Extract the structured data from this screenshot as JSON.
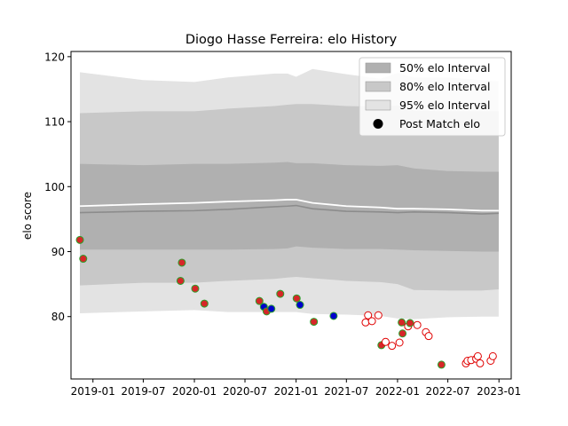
{
  "chart_data": {
    "type": "scatter",
    "title": "Diogo Hasse Ferreira: elo History",
    "xlabel": "",
    "ylabel": "elo score",
    "xlim": [
      "2018-10-14",
      "2023-02-14"
    ],
    "ylim": [
      70.4,
      120.8
    ],
    "x_ticks": [
      "2019-01",
      "2019-07",
      "2020-01",
      "2020-07",
      "2021-01",
      "2021-07",
      "2022-01",
      "2022-07",
      "2023-01"
    ],
    "y_ticks": [
      80,
      90,
      100,
      110,
      120
    ],
    "grid": false,
    "legend_position": "top-right",
    "legend": [
      "50% elo Interval",
      "80% elo Interval",
      "95% elo Interval",
      "Post Match elo"
    ],
    "colors": {
      "band_50": "#b0b0b0",
      "band_80": "#c8c8c8",
      "band_95": "#e3e3e3",
      "median_line": "#8c8c8c",
      "mean_line": "#ffffff",
      "win_fill": "#d62728",
      "loss_fill": "#0000cc",
      "future_edge": "#e00000",
      "played_edge": "#2ca02c"
    },
    "bands": {
      "x": [
        "2018-11-15",
        "2019-07-01",
        "2020-01-01",
        "2020-05-01",
        "2020-10-15",
        "2020-12-01",
        "2021-01-01",
        "2021-03-01",
        "2021-07-01",
        "2021-11-01",
        "2022-01-01",
        "2022-03-01",
        "2022-07-01",
        "2022-11-01",
        "2022-12-31"
      ],
      "p95_upper": [
        117.6,
        116.4,
        116.1,
        116.8,
        117.4,
        117.4,
        116.9,
        118.1,
        117.3,
        116.6,
        117.5,
        116.8,
        116.8,
        116.4,
        116.2
      ],
      "p80_upper": [
        111.3,
        111.6,
        111.6,
        112.0,
        112.4,
        112.6,
        112.7,
        112.7,
        112.4,
        112.3,
        112.5,
        111.7,
        111.6,
        111.6,
        111.6
      ],
      "p50_upper": [
        103.5,
        103.3,
        103.5,
        103.5,
        103.7,
        103.8,
        103.6,
        103.6,
        103.3,
        103.2,
        103.3,
        102.8,
        102.4,
        102.3,
        102.3
      ],
      "median": [
        96.0,
        96.2,
        96.3,
        96.5,
        96.9,
        97.0,
        97.1,
        96.6,
        96.2,
        96.1,
        96.0,
        96.1,
        96.0,
        95.8,
        95.9
      ],
      "mean": [
        97.0,
        97.3,
        97.5,
        97.7,
        97.9,
        98.0,
        98.0,
        97.5,
        97.0,
        96.8,
        96.6,
        96.6,
        96.5,
        96.3,
        96.3
      ],
      "p50_lower": [
        90.3,
        90.3,
        90.3,
        90.3,
        90.4,
        90.5,
        90.8,
        90.6,
        90.4,
        90.4,
        90.3,
        90.2,
        90.1,
        90.0,
        90.0
      ],
      "p80_lower": [
        84.8,
        85.2,
        85.2,
        85.5,
        85.8,
        86.0,
        86.1,
        85.9,
        85.5,
        85.3,
        85.0,
        84.1,
        84.0,
        84.0,
        84.2
      ],
      "p95_lower": [
        80.5,
        80.8,
        81.0,
        80.7,
        80.7,
        80.7,
        80.7,
        80.4,
        80.3,
        80.1,
        79.7,
        79.6,
        79.9,
        80.0,
        80.0
      ]
    },
    "points": [
      {
        "date": "2018-11-15",
        "elo": 91.8,
        "result": "win",
        "played": true
      },
      {
        "date": "2018-11-27",
        "elo": 88.9,
        "result": "win",
        "played": true
      },
      {
        "date": "2019-11-12",
        "elo": 85.5,
        "result": "win",
        "played": true
      },
      {
        "date": "2019-11-17",
        "elo": 88.3,
        "result": "win",
        "played": true
      },
      {
        "date": "2020-01-04",
        "elo": 84.3,
        "result": "win",
        "played": true
      },
      {
        "date": "2020-02-06",
        "elo": 82.0,
        "result": "win",
        "played": true
      },
      {
        "date": "2020-08-22",
        "elo": 82.4,
        "result": "win",
        "played": true
      },
      {
        "date": "2020-09-07",
        "elo": 81.5,
        "result": "loss",
        "played": true
      },
      {
        "date": "2020-09-17",
        "elo": 80.8,
        "result": "win",
        "played": true
      },
      {
        "date": "2020-10-04",
        "elo": 81.2,
        "result": "loss",
        "played": true
      },
      {
        "date": "2020-11-05",
        "elo": 83.5,
        "result": "win",
        "played": true
      },
      {
        "date": "2021-01-03",
        "elo": 82.8,
        "result": "win",
        "played": true
      },
      {
        "date": "2021-01-15",
        "elo": 81.8,
        "result": "loss",
        "played": true
      },
      {
        "date": "2021-03-06",
        "elo": 79.2,
        "result": "win",
        "played": true
      },
      {
        "date": "2021-05-16",
        "elo": 80.1,
        "result": "loss",
        "played": true
      },
      {
        "date": "2021-09-08",
        "elo": 79.1,
        "result": "future",
        "played": false
      },
      {
        "date": "2021-09-17",
        "elo": 80.2,
        "result": "future",
        "played": false
      },
      {
        "date": "2021-10-01",
        "elo": 79.3,
        "result": "future",
        "played": false
      },
      {
        "date": "2021-10-24",
        "elo": 80.2,
        "result": "future",
        "played": false
      },
      {
        "date": "2021-11-04",
        "elo": 75.6,
        "result": "win",
        "played": true
      },
      {
        "date": "2021-11-19",
        "elo": 76.1,
        "result": "future",
        "played": false
      },
      {
        "date": "2021-12-12",
        "elo": 75.5,
        "result": "future",
        "played": false
      },
      {
        "date": "2022-01-08",
        "elo": 76.0,
        "result": "future",
        "played": false
      },
      {
        "date": "2022-01-16",
        "elo": 79.1,
        "result": "win",
        "played": true
      },
      {
        "date": "2022-01-19",
        "elo": 77.4,
        "result": "win",
        "played": true
      },
      {
        "date": "2022-02-08",
        "elo": 78.5,
        "result": "future",
        "played": false
      },
      {
        "date": "2022-02-15",
        "elo": 79.0,
        "result": "win",
        "played": true
      },
      {
        "date": "2022-03-13",
        "elo": 78.7,
        "result": "future",
        "played": false
      },
      {
        "date": "2022-04-13",
        "elo": 77.6,
        "result": "future",
        "played": false
      },
      {
        "date": "2022-04-23",
        "elo": 77.0,
        "result": "future",
        "played": false
      },
      {
        "date": "2022-06-08",
        "elo": 72.6,
        "result": "win",
        "played": true
      },
      {
        "date": "2022-09-04",
        "elo": 72.8,
        "result": "future",
        "played": false
      },
      {
        "date": "2022-09-10",
        "elo": 73.2,
        "result": "future",
        "played": false
      },
      {
        "date": "2022-09-23",
        "elo": 73.3,
        "result": "future",
        "played": false
      },
      {
        "date": "2022-10-11",
        "elo": 73.5,
        "result": "future",
        "played": false
      },
      {
        "date": "2022-10-17",
        "elo": 73.9,
        "result": "future",
        "played": false
      },
      {
        "date": "2022-10-25",
        "elo": 72.8,
        "result": "future",
        "played": false
      },
      {
        "date": "2022-12-02",
        "elo": 73.2,
        "result": "future",
        "played": false
      },
      {
        "date": "2022-12-10",
        "elo": 73.9,
        "result": "future",
        "played": false
      }
    ]
  }
}
